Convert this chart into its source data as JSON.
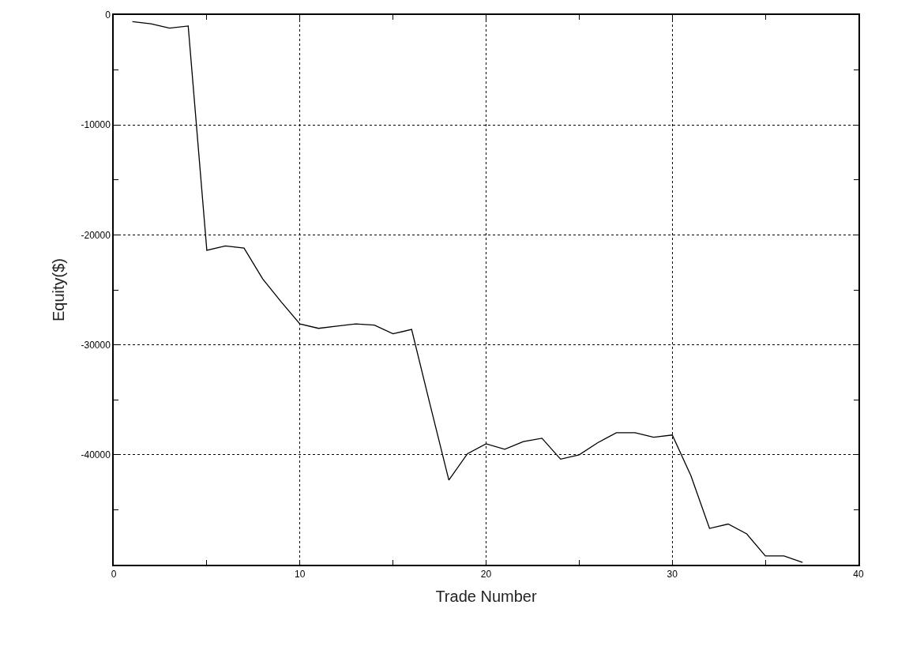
{
  "chart_data": {
    "type": "line",
    "xlabel": "Trade Number",
    "ylabel": "Equity($)",
    "x": [
      1,
      2,
      3,
      4,
      5,
      6,
      7,
      8,
      9,
      10,
      11,
      12,
      13,
      14,
      15,
      16,
      17,
      18,
      19,
      20,
      21,
      22,
      23,
      24,
      25,
      26,
      27,
      28,
      29,
      30,
      31,
      32,
      33,
      34,
      35,
      36,
      37
    ],
    "series": [
      {
        "color": "#000000",
        "values": [
          -600,
          -800,
          -1200,
          -1000,
          -21400,
          -21000,
          -21200,
          -24000,
          -26100,
          -28100,
          -28500,
          -28300,
          -28100,
          -28200,
          -29000,
          -28600,
          -35500,
          -42300,
          -39900,
          -39000,
          -39500,
          -38800,
          -38500,
          -40400,
          -40000,
          -38900,
          -38000,
          -38000,
          -38400,
          -38200,
          -41900,
          -46700,
          -46300,
          -47200,
          -49200,
          -49200,
          -49800
        ]
      }
    ],
    "xlim": [
      0,
      40
    ],
    "ylim": [
      -50000,
      0
    ],
    "xticks": [
      0,
      {
        "value": 5,
        "label": null
      },
      10,
      {
        "value": 15,
        "label": null
      },
      20,
      {
        "value": 25,
        "label": null
      },
      30,
      {
        "value": 35,
        "label": null
      },
      40
    ],
    "yticks": [
      0,
      {
        "value": -5000,
        "label": null
      },
      -10000,
      {
        "value": -15000,
        "label": null
      },
      -20000,
      {
        "value": -25000,
        "label": null
      },
      -30000,
      {
        "value": -35000,
        "label": null
      },
      -40000,
      {
        "value": -45000,
        "label": null
      }
    ],
    "grid": true,
    "marker": "none",
    "line_style": "solid"
  }
}
